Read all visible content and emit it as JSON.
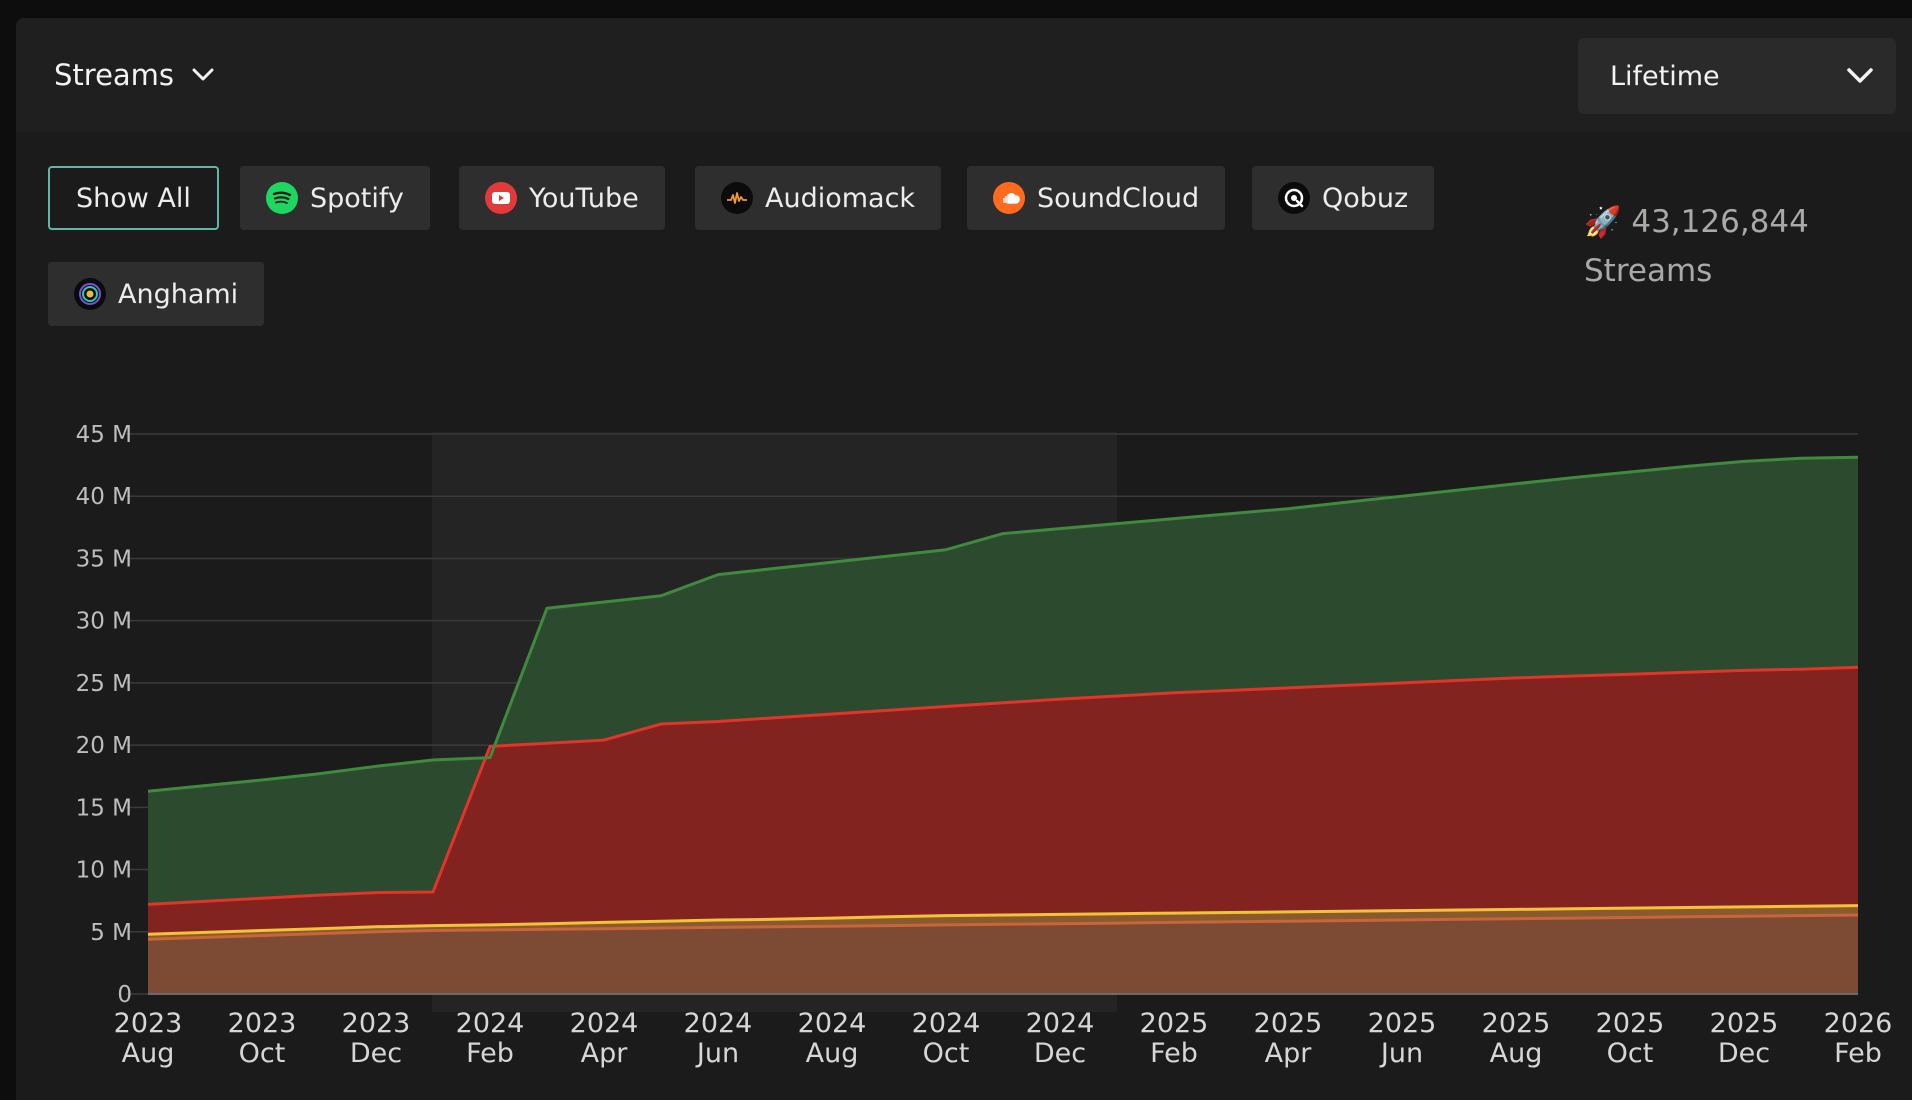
{
  "header": {
    "metric_label": "Streams",
    "period_label": "Lifetime"
  },
  "filters": [
    {
      "label": "Show All",
      "icon": "show-all",
      "active": true
    },
    {
      "label": "Spotify",
      "icon": "spotify-icon",
      "color": "#1ed760"
    },
    {
      "label": "YouTube",
      "icon": "youtube-icon",
      "color": "#e23a3a"
    },
    {
      "label": "Audiomack",
      "icon": "audiomack-icon",
      "color": "#f39a2b"
    },
    {
      "label": "SoundCloud",
      "icon": "soundcloud-icon",
      "color": "#ff6a1f"
    },
    {
      "label": "Qobuz",
      "icon": "qobuz-icon",
      "color": "#ffffff"
    },
    {
      "label": "Anghami",
      "icon": "anghami-icon",
      "color": "#9b59ff"
    }
  ],
  "summary": {
    "icon": "rocket-icon",
    "total": "43,126,844",
    "unit": "Streams"
  },
  "chart_data": {
    "type": "area",
    "stacked": true,
    "y_ticks": [
      "0",
      "5 M",
      "10 M",
      "15 M",
      "20 M",
      "25 M",
      "30 M",
      "35 M",
      "40 M",
      "45 M"
    ],
    "ylim": [
      0,
      45000000
    ],
    "x_ticks": [
      [
        "2023",
        "Aug"
      ],
      [
        "2023",
        "Oct"
      ],
      [
        "2023",
        "Dec"
      ],
      [
        "2024",
        "Feb"
      ],
      [
        "2024",
        "Apr"
      ],
      [
        "2024",
        "Jun"
      ],
      [
        "2024",
        "Aug"
      ],
      [
        "2024",
        "Oct"
      ],
      [
        "2024",
        "Dec"
      ],
      [
        "2025",
        "Feb"
      ],
      [
        "2025",
        "Apr"
      ],
      [
        "2025",
        "Jun"
      ],
      [
        "2025",
        "Aug"
      ],
      [
        "2025",
        "Oct"
      ],
      [
        "2025",
        "Dec"
      ],
      [
        "2026",
        "Feb"
      ]
    ],
    "x": [
      "2023-08",
      "2023-09",
      "2023-10",
      "2023-11",
      "2023-12",
      "2024-01",
      "2024-02",
      "2024-03",
      "2024-04",
      "2024-05",
      "2024-06",
      "2024-07",
      "2024-08",
      "2024-09",
      "2024-10",
      "2024-11",
      "2024-12",
      "2025-01",
      "2025-02",
      "2025-03",
      "2025-04",
      "2025-05",
      "2025-06",
      "2025-07",
      "2025-08",
      "2025-09",
      "2025-10",
      "2025-11",
      "2025-12",
      "2026-01",
      "2026-02"
    ],
    "grid": true,
    "series": [
      {
        "color": "#c8653a",
        "fill": "#7d4a33",
        "cumulative": [
          4.4,
          4.55,
          4.7,
          4.85,
          5.0,
          5.1,
          5.15,
          5.2,
          5.25,
          5.3,
          5.35,
          5.4,
          5.45,
          5.5,
          5.55,
          5.6,
          5.65,
          5.7,
          5.75,
          5.8,
          5.85,
          5.9,
          5.95,
          6.0,
          6.05,
          6.1,
          6.15,
          6.2,
          6.25,
          6.3,
          6.35
        ]
      },
      {
        "color": "#f2c23a",
        "fill": "#8a5a2e",
        "cumulative": [
          4.8,
          4.95,
          5.1,
          5.25,
          5.4,
          5.5,
          5.55,
          5.65,
          5.75,
          5.85,
          5.95,
          6.0,
          6.1,
          6.2,
          6.3,
          6.35,
          6.4,
          6.45,
          6.5,
          6.55,
          6.6,
          6.65,
          6.7,
          6.75,
          6.8,
          6.85,
          6.9,
          6.95,
          7.0,
          7.05,
          7.1
        ]
      },
      {
        "color": "#e0352a",
        "fill": "#822320",
        "cumulative": [
          7.2,
          7.45,
          7.7,
          7.95,
          8.15,
          8.2,
          19.9,
          20.15,
          20.4,
          21.7,
          21.9,
          22.2,
          22.5,
          22.8,
          23.1,
          23.4,
          23.7,
          23.95,
          24.2,
          24.4,
          24.6,
          24.8,
          25.0,
          25.2,
          25.4,
          25.55,
          25.7,
          25.85,
          26.0,
          26.1,
          26.25
        ]
      },
      {
        "color": "#3f8a3f",
        "fill": "#2c4a2d",
        "cumulative": [
          16.3,
          16.75,
          17.2,
          17.7,
          18.3,
          18.8,
          19.0,
          31.0,
          31.5,
          32.0,
          33.7,
          34.2,
          34.7,
          35.2,
          35.7,
          37.0,
          37.4,
          37.8,
          38.2,
          38.6,
          39.0,
          39.5,
          40.0,
          40.5,
          41.0,
          41.5,
          41.95,
          42.4,
          42.8,
          43.05,
          43.13
        ]
      }
    ]
  }
}
